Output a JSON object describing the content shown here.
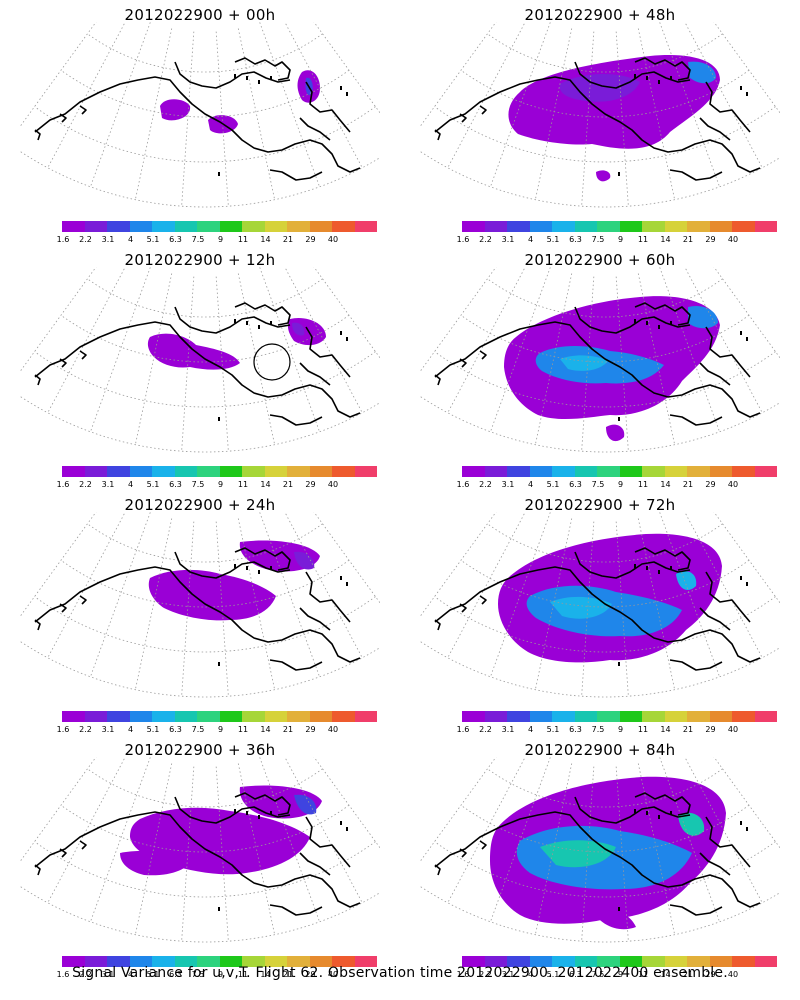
{
  "panels": [
    {
      "title": "2012022900 + 00h",
      "lead_hours": 0
    },
    {
      "title": "2012022900 + 48h",
      "lead_hours": 48
    },
    {
      "title": "2012022900 + 12h",
      "lead_hours": 12
    },
    {
      "title": "2012022900 + 60h",
      "lead_hours": 60
    },
    {
      "title": "2012022900 + 24h",
      "lead_hours": 24
    },
    {
      "title": "2012022900 + 72h",
      "lead_hours": 72
    },
    {
      "title": "2012022900 + 36h",
      "lead_hours": 36
    },
    {
      "title": "2012022900 + 84h",
      "lead_hours": 84
    }
  ],
  "colorbar": {
    "labels": [
      "1.6",
      "2.2",
      "3.1",
      "4",
      "5.1",
      "6.3",
      "7.5",
      "9",
      "11",
      "14",
      "21",
      "29",
      "40"
    ],
    "colors": [
      "#9a00d6",
      "#7a1cd8",
      "#3f44e0",
      "#1f86ea",
      "#1ab2ea",
      "#17c6b0",
      "#2dd37e",
      "#1ec81a",
      "#a6d638",
      "#d6d23a",
      "#e2b03a",
      "#e68a2e",
      "#ee5a2e",
      "#f03e6a"
    ]
  },
  "colors": {
    "coastline": "#000000",
    "grid": "#9a9a9a"
  },
  "footer": "Signal Variance for u,v,T. Flight 62. Observation time 2012022900. 2012022400 ensemble."
}
